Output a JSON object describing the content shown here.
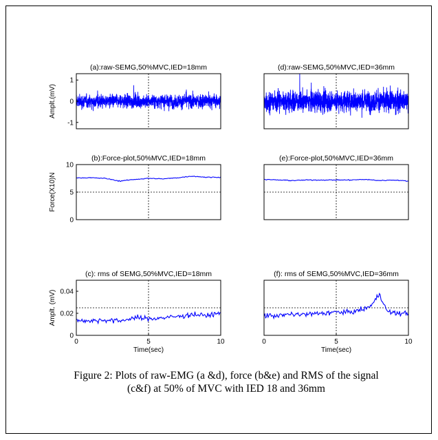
{
  "chart_data": [
    {
      "type": "line",
      "panel": "a",
      "title": "(a):raw-SEMG,50%MVC,IED=18mm",
      "ylabel": "Amplt.(mV)",
      "xlabel": "",
      "xlim": [
        0,
        10
      ],
      "ylim": [
        -1.3,
        1.3
      ],
      "yticks": [
        -1,
        0,
        1
      ],
      "xticks": [],
      "grid": true,
      "series": [
        {
          "amplitude": 0.55,
          "peak": 1.1,
          "samples": 1400
        }
      ]
    },
    {
      "type": "line",
      "panel": "d",
      "title": "(d):raw-SEMG,50%MVC,IED=36mm",
      "ylabel": "",
      "xlabel": "",
      "xlim": [
        0,
        10
      ],
      "ylim": [
        -1.3,
        1.3
      ],
      "yticks": [],
      "xticks": [],
      "grid": true,
      "series": [
        {
          "amplitude": 0.85,
          "peak": 1.3,
          "samples": 1400
        }
      ]
    },
    {
      "type": "line",
      "panel": "b",
      "title": "(b):Force-plot,50%MVC,IED=18mm",
      "ylabel": "Force(X10)N",
      "xlabel": "",
      "xlim": [
        0,
        10
      ],
      "ylim": [
        0,
        10
      ],
      "yticks": [
        0,
        5,
        10
      ],
      "xticks": [],
      "grid": true,
      "series": [
        {
          "x": [
            0,
            1,
            2,
            3,
            4,
            5,
            6,
            7,
            8,
            9,
            10
          ],
          "y": [
            7.6,
            7.6,
            7.5,
            7.0,
            7.3,
            7.5,
            7.4,
            7.6,
            7.9,
            7.7,
            7.7
          ]
        }
      ]
    },
    {
      "type": "line",
      "panel": "e",
      "title": "(e):Force-plot,50%MVC,IED=36mm",
      "ylabel": "",
      "xlabel": "",
      "xlim": [
        0,
        10
      ],
      "ylim": [
        0,
        10
      ],
      "yticks": [],
      "xticks": [],
      "grid": true,
      "series": [
        {
          "x": [
            0,
            1,
            2,
            3,
            4,
            5,
            6,
            7,
            8,
            9,
            10
          ],
          "y": [
            7.3,
            7.2,
            7.1,
            7.2,
            7.2,
            7.2,
            7.2,
            7.3,
            7.1,
            7.2,
            7.0
          ]
        }
      ]
    },
    {
      "type": "line",
      "panel": "c",
      "title": "(c): rms of SEMG,50%MVC,IED=18mm",
      "ylabel": "Amplt. (mV)",
      "xlabel": "Time(sec)",
      "xlim": [
        0,
        10
      ],
      "ylim": [
        0,
        0.05
      ],
      "yticks": [
        0,
        0.02,
        0.04
      ],
      "xticks": [
        0,
        5,
        10
      ],
      "grid": true,
      "series": [
        {
          "x": [
            0,
            1,
            2,
            3,
            4,
            5,
            6,
            7,
            8,
            9,
            10
          ],
          "y": [
            0.014,
            0.013,
            0.014,
            0.013,
            0.016,
            0.015,
            0.016,
            0.017,
            0.019,
            0.018,
            0.02
          ]
        }
      ]
    },
    {
      "type": "line",
      "panel": "f",
      "title": "(f): rms of SEMG,50%MVC,IED=36mm",
      "ylabel": "",
      "xlabel": "Time(sec)",
      "xlim": [
        0,
        10
      ],
      "ylim": [
        0,
        0.05
      ],
      "yticks": [],
      "xticks": [
        0,
        5,
        10
      ],
      "grid": true,
      "series": [
        {
          "x": [
            0,
            1,
            2,
            3,
            4,
            5,
            6,
            7,
            7.5,
            8,
            8.5,
            9,
            10
          ],
          "y": [
            0.018,
            0.018,
            0.019,
            0.019,
            0.02,
            0.021,
            0.021,
            0.024,
            0.028,
            0.038,
            0.022,
            0.02,
            0.02
          ]
        }
      ]
    }
  ],
  "caption": "Figure 2: Plots of raw-EMG (a &d), force (b&e) and RMS of the signal (c&f) at 50% of MVC with IED 18 and 36mm",
  "colors": {
    "signal": "#0000ff",
    "axis": "#000000",
    "grid": "#000000"
  }
}
